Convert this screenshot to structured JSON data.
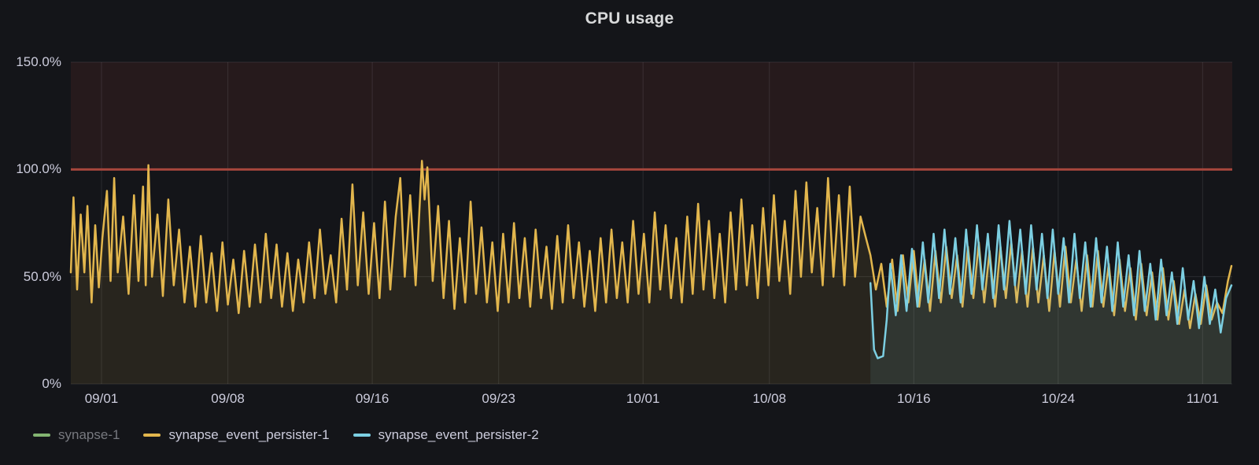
{
  "panel": {
    "title": "CPU usage",
    "background_color": "#141519",
    "text_color": "#ccccdc",
    "grid_color": "rgba(204,204,220,0.12)"
  },
  "chart_data": {
    "type": "line",
    "title": "CPU usage",
    "legend_position": "bottom",
    "grid": true,
    "x_axis": {
      "unit": "date",
      "ticks": [
        {
          "day": 0,
          "label": "09/01"
        },
        {
          "day": 7,
          "label": "09/08"
        },
        {
          "day": 15,
          "label": "09/16"
        },
        {
          "day": 22,
          "label": "09/23"
        },
        {
          "day": 30,
          "label": "10/01"
        },
        {
          "day": 37,
          "label": "10/08"
        },
        {
          "day": 45,
          "label": "10/16"
        },
        {
          "day": 53,
          "label": "10/24"
        },
        {
          "day": 61,
          "label": "11/01"
        }
      ]
    },
    "y_axis": {
      "unit": "percent",
      "min": 0,
      "max": 150,
      "ticks": [
        {
          "value": 150,
          "label": "150.0%"
        },
        {
          "value": 100,
          "label": "100.0%"
        },
        {
          "value": 50,
          "label": "50.0%"
        },
        {
          "value": 0,
          "label": "0%"
        }
      ]
    },
    "threshold": {
      "value": 100,
      "line_color": "#a6463c",
      "region_max": 150,
      "region_fill": "rgba(169,68,56,0.12)"
    },
    "series": [
      {
        "name": "synapse-1",
        "color": "#83b471",
        "hidden": true,
        "fill_opacity": 0.1,
        "points": []
      },
      {
        "name": "synapse_event_persister-1",
        "color": "#e2b64d",
        "hidden": false,
        "fill_opacity": 0.1,
        "points": [
          [
            -1.7,
            52
          ],
          [
            -1.55,
            87
          ],
          [
            -1.35,
            44
          ],
          [
            -1.15,
            79
          ],
          [
            -0.95,
            52
          ],
          [
            -0.78,
            83
          ],
          [
            -0.55,
            38
          ],
          [
            -0.35,
            74
          ],
          [
            -0.15,
            45
          ],
          [
            0.05,
            68
          ],
          [
            0.3,
            90
          ],
          [
            0.5,
            48
          ],
          [
            0.7,
            96
          ],
          [
            0.9,
            52
          ],
          [
            1.2,
            78
          ],
          [
            1.5,
            42
          ],
          [
            1.8,
            88
          ],
          [
            2.05,
            48
          ],
          [
            2.3,
            92
          ],
          [
            2.45,
            46
          ],
          [
            2.6,
            102
          ],
          [
            2.8,
            50
          ],
          [
            3.1,
            79
          ],
          [
            3.4,
            41
          ],
          [
            3.7,
            86
          ],
          [
            4.0,
            46
          ],
          [
            4.3,
            72
          ],
          [
            4.6,
            38
          ],
          [
            4.9,
            64
          ],
          [
            5.2,
            36
          ],
          [
            5.5,
            69
          ],
          [
            5.8,
            38
          ],
          [
            6.1,
            61
          ],
          [
            6.4,
            34
          ],
          [
            6.7,
            66
          ],
          [
            7.0,
            37
          ],
          [
            7.3,
            58
          ],
          [
            7.6,
            33
          ],
          [
            7.9,
            62
          ],
          [
            8.2,
            36
          ],
          [
            8.5,
            65
          ],
          [
            8.8,
            38
          ],
          [
            9.1,
            70
          ],
          [
            9.4,
            40
          ],
          [
            9.7,
            65
          ],
          [
            10.0,
            36
          ],
          [
            10.3,
            61
          ],
          [
            10.6,
            34
          ],
          [
            10.9,
            58
          ],
          [
            11.2,
            38
          ],
          [
            11.5,
            66
          ],
          [
            11.8,
            40
          ],
          [
            12.1,
            72
          ],
          [
            12.4,
            42
          ],
          [
            12.7,
            60
          ],
          [
            13.0,
            38
          ],
          [
            13.3,
            77
          ],
          [
            13.6,
            44
          ],
          [
            13.9,
            93
          ],
          [
            14.2,
            46
          ],
          [
            14.5,
            80
          ],
          [
            14.8,
            42
          ],
          [
            15.1,
            75
          ],
          [
            15.4,
            40
          ],
          [
            15.7,
            85
          ],
          [
            16.0,
            44
          ],
          [
            16.3,
            78
          ],
          [
            16.55,
            96
          ],
          [
            16.8,
            50
          ],
          [
            17.1,
            88
          ],
          [
            17.4,
            46
          ],
          [
            17.75,
            104
          ],
          [
            17.9,
            86
          ],
          [
            18.05,
            101
          ],
          [
            18.35,
            48
          ],
          [
            18.65,
            83
          ],
          [
            18.95,
            40
          ],
          [
            19.25,
            76
          ],
          [
            19.55,
            35
          ],
          [
            19.85,
            68
          ],
          [
            20.15,
            38
          ],
          [
            20.45,
            85
          ],
          [
            20.75,
            42
          ],
          [
            21.05,
            73
          ],
          [
            21.35,
            38
          ],
          [
            21.65,
            66
          ],
          [
            21.95,
            34
          ],
          [
            22.25,
            70
          ],
          [
            22.55,
            38
          ],
          [
            22.85,
            75
          ],
          [
            23.15,
            40
          ],
          [
            23.45,
            68
          ],
          [
            23.75,
            36
          ],
          [
            24.05,
            72
          ],
          [
            24.35,
            40
          ],
          [
            24.65,
            64
          ],
          [
            24.95,
            35
          ],
          [
            25.25,
            69
          ],
          [
            25.55,
            38
          ],
          [
            25.85,
            74
          ],
          [
            26.15,
            40
          ],
          [
            26.45,
            66
          ],
          [
            26.75,
            36
          ],
          [
            27.05,
            62
          ],
          [
            27.35,
            34
          ],
          [
            27.65,
            68
          ],
          [
            27.95,
            38
          ],
          [
            28.25,
            72
          ],
          [
            28.55,
            40
          ],
          [
            28.85,
            66
          ],
          [
            29.15,
            38
          ],
          [
            29.45,
            76
          ],
          [
            29.75,
            42
          ],
          [
            30.05,
            70
          ],
          [
            30.35,
            38
          ],
          [
            30.65,
            80
          ],
          [
            30.95,
            44
          ],
          [
            31.25,
            74
          ],
          [
            31.55,
            40
          ],
          [
            31.85,
            68
          ],
          [
            32.15,
            38
          ],
          [
            32.45,
            78
          ],
          [
            32.75,
            42
          ],
          [
            33.05,
            84
          ],
          [
            33.35,
            44
          ],
          [
            33.65,
            76
          ],
          [
            33.95,
            40
          ],
          [
            34.25,
            70
          ],
          [
            34.55,
            38
          ],
          [
            34.85,
            80
          ],
          [
            35.15,
            44
          ],
          [
            35.45,
            86
          ],
          [
            35.75,
            46
          ],
          [
            36.05,
            74
          ],
          [
            36.35,
            40
          ],
          [
            36.65,
            82
          ],
          [
            36.95,
            46
          ],
          [
            37.25,
            88
          ],
          [
            37.55,
            48
          ],
          [
            37.85,
            76
          ],
          [
            38.15,
            42
          ],
          [
            38.45,
            90
          ],
          [
            38.75,
            50
          ],
          [
            39.05,
            94
          ],
          [
            39.35,
            52
          ],
          [
            39.65,
            82
          ],
          [
            39.95,
            46
          ],
          [
            40.25,
            96
          ],
          [
            40.55,
            50
          ],
          [
            40.85,
            88
          ],
          [
            41.15,
            46
          ],
          [
            41.45,
            92
          ],
          [
            41.75,
            50
          ],
          [
            42.05,
            78
          ],
          [
            42.35,
            68
          ],
          [
            42.6,
            60
          ],
          [
            42.9,
            44
          ],
          [
            43.2,
            56
          ],
          [
            43.5,
            36
          ],
          [
            43.8,
            58
          ],
          [
            44.1,
            34
          ],
          [
            44.4,
            60
          ],
          [
            44.7,
            38
          ],
          [
            45.0,
            62
          ],
          [
            45.3,
            36
          ],
          [
            45.6,
            58
          ],
          [
            45.9,
            34
          ],
          [
            46.2,
            62
          ],
          [
            46.5,
            38
          ],
          [
            46.8,
            64
          ],
          [
            47.1,
            40
          ],
          [
            47.4,
            60
          ],
          [
            47.7,
            36
          ],
          [
            48.0,
            64
          ],
          [
            48.3,
            40
          ],
          [
            48.6,
            66
          ],
          [
            48.9,
            38
          ],
          [
            49.2,
            62
          ],
          [
            49.5,
            36
          ],
          [
            49.8,
            64
          ],
          [
            50.1,
            40
          ],
          [
            50.4,
            66
          ],
          [
            50.7,
            38
          ],
          [
            51.0,
            62
          ],
          [
            51.3,
            36
          ],
          [
            51.6,
            64
          ],
          [
            51.9,
            38
          ],
          [
            52.2,
            60
          ],
          [
            52.5,
            34
          ],
          [
            52.8,
            62
          ],
          [
            53.1,
            36
          ],
          [
            53.4,
            64
          ],
          [
            53.7,
            38
          ],
          [
            54.0,
            58
          ],
          [
            54.3,
            34
          ],
          [
            54.6,
            60
          ],
          [
            54.9,
            36
          ],
          [
            55.2,
            62
          ],
          [
            55.5,
            36
          ],
          [
            55.8,
            56
          ],
          [
            56.1,
            32
          ],
          [
            56.4,
            58
          ],
          [
            56.7,
            34
          ],
          [
            57.0,
            54
          ],
          [
            57.3,
            30
          ],
          [
            57.6,
            56
          ],
          [
            57.9,
            32
          ],
          [
            58.2,
            52
          ],
          [
            58.5,
            30
          ],
          [
            58.8,
            54
          ],
          [
            59.1,
            30
          ],
          [
            59.4,
            48
          ],
          [
            59.7,
            28
          ],
          [
            60.0,
            44
          ],
          [
            60.3,
            26
          ],
          [
            60.6,
            42
          ],
          [
            60.9,
            28
          ],
          [
            61.2,
            46
          ],
          [
            61.5,
            30
          ],
          [
            61.8,
            38
          ],
          [
            62.1,
            33
          ],
          [
            62.4,
            48
          ],
          [
            62.6,
            55
          ]
        ]
      },
      {
        "name": "synapse_event_persister-2",
        "color": "#7ccfe2",
        "hidden": false,
        "fill_opacity": 0.1,
        "points": [
          [
            42.6,
            47
          ],
          [
            42.8,
            16
          ],
          [
            43.0,
            12
          ],
          [
            43.3,
            13
          ],
          [
            43.5,
            30
          ],
          [
            43.7,
            56
          ],
          [
            44.0,
            32
          ],
          [
            44.3,
            60
          ],
          [
            44.6,
            34
          ],
          [
            44.9,
            63
          ],
          [
            45.2,
            36
          ],
          [
            45.5,
            66
          ],
          [
            45.8,
            38
          ],
          [
            46.1,
            70
          ],
          [
            46.4,
            40
          ],
          [
            46.7,
            72
          ],
          [
            47.0,
            42
          ],
          [
            47.3,
            68
          ],
          [
            47.6,
            38
          ],
          [
            47.9,
            72
          ],
          [
            48.2,
            42
          ],
          [
            48.5,
            74
          ],
          [
            48.8,
            44
          ],
          [
            49.1,
            70
          ],
          [
            49.4,
            40
          ],
          [
            49.7,
            74
          ],
          [
            50.0,
            44
          ],
          [
            50.3,
            76
          ],
          [
            50.6,
            46
          ],
          [
            50.9,
            72
          ],
          [
            51.2,
            42
          ],
          [
            51.5,
            74
          ],
          [
            51.8,
            44
          ],
          [
            52.1,
            70
          ],
          [
            52.4,
            40
          ],
          [
            52.7,
            72
          ],
          [
            53.0,
            42
          ],
          [
            53.3,
            68
          ],
          [
            53.6,
            38
          ],
          [
            53.9,
            70
          ],
          [
            54.2,
            40
          ],
          [
            54.5,
            66
          ],
          [
            54.8,
            36
          ],
          [
            55.1,
            68
          ],
          [
            55.4,
            38
          ],
          [
            55.7,
            64
          ],
          [
            56.0,
            34
          ],
          [
            56.3,
            66
          ],
          [
            56.6,
            36
          ],
          [
            56.9,
            60
          ],
          [
            57.2,
            32
          ],
          [
            57.5,
            62
          ],
          [
            57.8,
            34
          ],
          [
            58.1,
            56
          ],
          [
            58.4,
            30
          ],
          [
            58.7,
            58
          ],
          [
            59.0,
            32
          ],
          [
            59.3,
            52
          ],
          [
            59.6,
            28
          ],
          [
            59.9,
            54
          ],
          [
            60.2,
            30
          ],
          [
            60.5,
            48
          ],
          [
            60.8,
            26
          ],
          [
            61.1,
            50
          ],
          [
            61.4,
            28
          ],
          [
            61.7,
            44
          ],
          [
            62.0,
            24
          ],
          [
            62.3,
            40
          ],
          [
            62.6,
            46
          ]
        ]
      }
    ]
  },
  "legend": {
    "items": [
      {
        "label": "synapse-1",
        "dimmed": true
      },
      {
        "label": "synapse_event_persister-1",
        "dimmed": false
      },
      {
        "label": "synapse_event_persister-2",
        "dimmed": false
      }
    ]
  }
}
